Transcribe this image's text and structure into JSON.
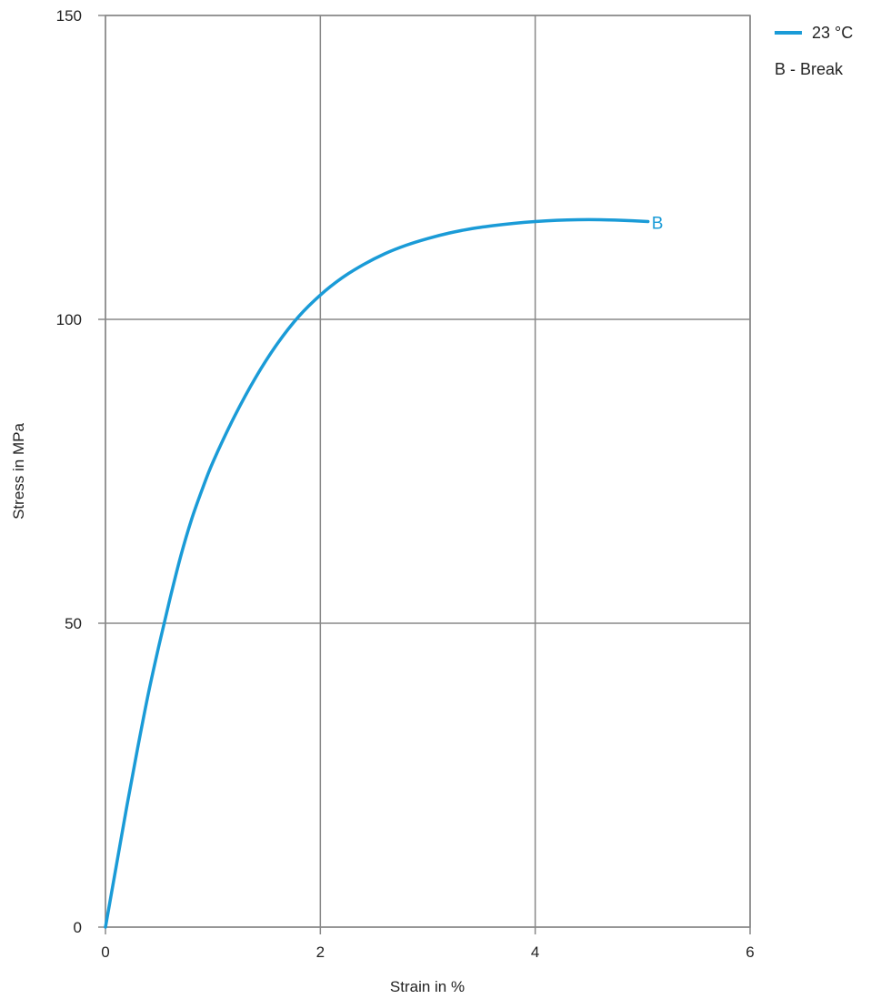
{
  "chart_data": {
    "type": "line",
    "title": "",
    "xlabel": "Strain in  %",
    "ylabel": "Stress in  MPa",
    "xlim": [
      0,
      6
    ],
    "ylim": [
      0,
      150
    ],
    "x_ticks": [
      0,
      2,
      4,
      6
    ],
    "y_ticks": [
      0,
      50,
      100,
      150
    ],
    "grid": true,
    "legend": {
      "placement": "top-right",
      "entries": [
        "23 °C"
      ],
      "note": "B - Break"
    },
    "series": [
      {
        "name": "23 °C",
        "color": "#1a9bd7",
        "x": [
          0,
          0.1,
          0.2,
          0.3,
          0.4,
          0.5,
          0.6,
          0.7,
          0.8,
          0.9,
          1.0,
          1.2,
          1.4,
          1.6,
          1.8,
          2.0,
          2.2,
          2.4,
          2.6,
          2.8,
          3.0,
          3.2,
          3.4,
          3.6,
          3.8,
          4.0,
          4.2,
          4.4,
          4.6,
          4.8,
          5.05
        ],
        "y": [
          0,
          10,
          20,
          29.5,
          38.5,
          46.5,
          54,
          61,
          67,
          72,
          76.5,
          84,
          90.5,
          96,
          100.5,
          104,
          106.8,
          109,
          110.8,
          112.2,
          113.3,
          114.2,
          114.9,
          115.4,
          115.8,
          116.1,
          116.3,
          116.4,
          116.4,
          116.3,
          116.1
        ]
      }
    ],
    "annotations": [
      {
        "text": "B",
        "x": 5.05,
        "y": 116.1
      }
    ]
  }
}
